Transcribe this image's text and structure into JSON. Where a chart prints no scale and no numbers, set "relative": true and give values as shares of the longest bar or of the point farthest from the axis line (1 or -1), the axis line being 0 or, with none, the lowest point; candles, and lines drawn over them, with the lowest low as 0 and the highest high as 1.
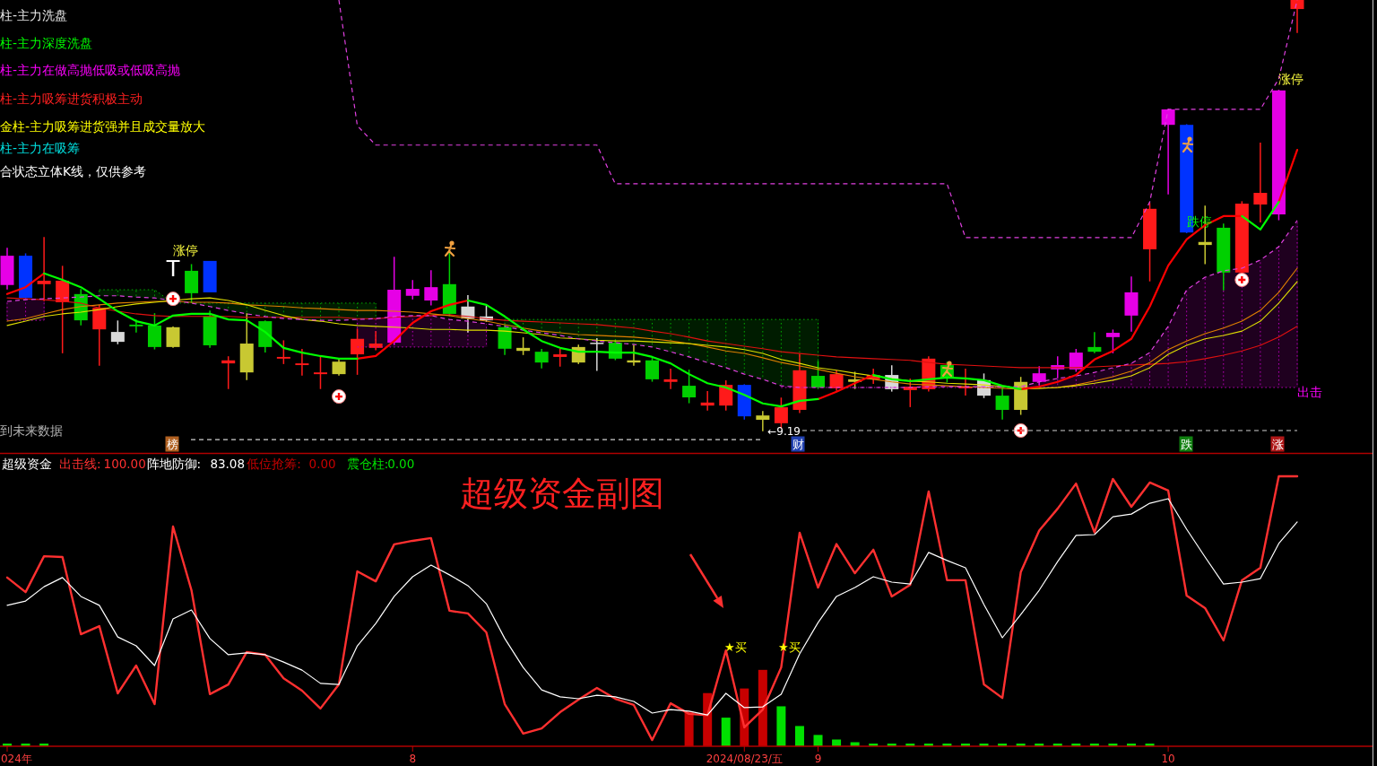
{
  "chart_data": [
    {
      "type": "candlestick",
      "relative": true,
      "categories": [
        null,
        null,
        null,
        null,
        null,
        null,
        null,
        null,
        null,
        null,
        null,
        null,
        null,
        null,
        null,
        null,
        null,
        null,
        null,
        null,
        null,
        null,
        null,
        null,
        null,
        null,
        null,
        null,
        null,
        null,
        null,
        null,
        null,
        null,
        null,
        null,
        null,
        null,
        null,
        null,
        null,
        null,
        null,
        null,
        null,
        null,
        null,
        null,
        null,
        null,
        null,
        null,
        null,
        null,
        null,
        null,
        null,
        null,
        null,
        null,
        null,
        null,
        null,
        null,
        null,
        null,
        null,
        null,
        null,
        null,
        null
      ],
      "ohlc": [
        [
          0.338,
          0.423,
          0.329,
          0.406
        ],
        [
          0.406,
          0.41,
          0.308,
          0.308
        ],
        [
          0.34,
          0.448,
          0.302,
          0.348
        ],
        [
          0.298,
          0.381,
          0.181,
          0.348
        ],
        [
          0.317,
          0.327,
          0.246,
          0.256
        ],
        [
          0.235,
          0.29,
          0.152,
          0.285
        ],
        [
          0.229,
          0.254,
          0.202,
          0.206
        ],
        [
          0.246,
          0.256,
          0.229,
          0.242
        ],
        [
          0.244,
          0.271,
          0.19,
          0.194
        ],
        [
          0.194,
          0.24,
          0.194,
          0.24
        ],
        [
          0.371,
          0.385,
          0.298,
          0.319
        ],
        [
          0.265,
          0.277,
          0.194,
          0.198
        ],
        [
          0.156,
          0.171,
          0.098,
          0.163
        ],
        [
          0.135,
          0.271,
          0.119,
          0.202
        ],
        [
          0.254,
          0.254,
          0.183,
          0.194
        ],
        [
          0.167,
          0.208,
          0.156,
          0.171
        ],
        [
          0.152,
          0.188,
          0.129,
          0.156
        ],
        [
          0.131,
          0.171,
          0.098,
          0.135
        ],
        [
          0.131,
          0.167,
          0.129,
          0.16
        ],
        [
          0.177,
          0.235,
          0.131,
          0.213
        ],
        [
          0.192,
          0.229,
          0.188,
          0.202
        ],
        [
          0.204,
          0.402,
          0.2,
          0.327
        ],
        [
          0.313,
          0.348,
          0.306,
          0.329
        ],
        [
          0.302,
          0.371,
          0.292,
          0.333
        ],
        [
          0.34,
          0.417,
          0.267,
          0.271
        ],
        [
          0.288,
          0.313,
          0.229,
          0.26
        ],
        [
          0.265,
          0.288,
          0.254,
          0.256
        ],
        [
          0.24,
          0.244,
          0.177,
          0.19
        ],
        [
          0.185,
          0.215,
          0.177,
          0.192
        ],
        [
          0.183,
          0.188,
          0.146,
          0.158
        ],
        [
          0.171,
          0.188,
          0.15,
          0.177
        ],
        [
          0.158,
          0.198,
          0.156,
          0.194
        ],
        [
          0.204,
          0.213,
          0.14,
          0.202
        ],
        [
          0.204,
          0.208,
          0.165,
          0.167
        ],
        [
          0.158,
          0.198,
          0.152,
          0.163
        ],
        [
          0.163,
          0.167,
          0.115,
          0.119
        ],
        [
          0.113,
          0.142,
          0.098,
          0.119
        ],
        [
          0.104,
          0.14,
          0.065,
          0.077
        ],
        [
          0.058,
          0.09,
          0.048,
          0.065
        ],
        [
          0.058,
          0.115,
          0.048,
          0.106
        ],
        [
          0.106,
          0.106,
          0.027,
          0.033
        ],
        [
          0.025,
          0.044,
          0,
          0.035
        ],
        [
          0.017,
          0.075,
          0.006,
          0.054
        ],
        [
          0.048,
          0.177,
          0.042,
          0.14
        ],
        [
          0.127,
          0.16,
          0.098,
          0.1
        ],
        [
          0.098,
          0.138,
          0.094,
          0.131
        ],
        [
          0.113,
          0.135,
          0.098,
          0.119
        ],
        [
          0.119,
          0.142,
          0.11,
          0.129
        ],
        [
          0.129,
          0.15,
          0.092,
          0.096
        ],
        [
          0.094,
          0.119,
          0.056,
          0.102
        ],
        [
          0.096,
          0.171,
          0.092,
          0.167
        ],
        [
          0.152,
          0.158,
          0.113,
          0.121
        ],
        [
          0.098,
          0.142,
          0.083,
          0.102
        ],
        [
          0.117,
          0.131,
          0.077,
          0.081
        ],
        [
          0.081,
          0.102,
          0.027,
          0.048
        ],
        [
          0.048,
          0.123,
          0.038,
          0.113
        ],
        [
          0.113,
          0.148,
          0.106,
          0.133
        ],
        [
          0.142,
          0.171,
          0.123,
          0.152
        ],
        [
          0.142,
          0.188,
          0.138,
          0.181
        ],
        [
          0.194,
          0.227,
          0.181,
          0.183
        ],
        [
          0.217,
          0.233,
          0.181,
          0.227
        ],
        [
          0.267,
          0.356,
          0.231,
          0.321
        ],
        [
          0.421,
          0.527,
          0.348,
          0.515
        ],
        [
          0.71,
          0.746,
          0.55,
          0.746
        ],
        [
          0.71,
          0.71,
          0.46,
          0.46
        ],
        [
          0.431,
          0.521,
          0.388,
          0.438
        ],
        [
          0.471,
          0.479,
          0.327,
          0.367
        ],
        [
          0.367,
          0.531,
          0.363,
          0.527
        ],
        [
          0.525,
          0.667,
          0.485,
          0.552
        ],
        [
          0.502,
          0.79,
          0.49,
          0.79
        ],
        [
          0.979,
          1,
          0.925,
          1
        ]
      ],
      "colors": [
        "#e600e6",
        "#0033ff",
        "#ff1a1a",
        "#ff1a1a",
        "#00d000",
        "#ff1a1a",
        "#d8d8d8",
        "#00d000",
        "#00d000",
        "#c8c832",
        "#00d000",
        "#00d000",
        "#ff1a1a",
        "#c8c832",
        "#00d000",
        "#ff1a1a",
        "#ff1a1a",
        "#ff1a1a",
        "#c8c832",
        "#ff1a1a",
        "#ff1a1a",
        "#e600e6",
        "#e600e6",
        "#e600e6",
        "#00d000",
        "#d8d8d8",
        "#d8d8d8",
        "#00d000",
        "#c8c832",
        "#00d000",
        "#ff1a1a",
        "#c8c832",
        "#d8d8d8",
        "#00d000",
        "#c8c832",
        "#00d000",
        "#ff1a1a",
        "#00d000",
        "#ff1a1a",
        "#ff1a1a",
        "#0033ff",
        "#c8c832",
        "#ff1a1a",
        "#ff1a1a",
        "#00d000",
        "#ff1a1a",
        "#c8c832",
        "#ff1a1a",
        "#d8d8d8",
        "#ff1a1a",
        "#ff1a1a",
        "#00d000",
        "#ff1a1a",
        "#d8d8d8",
        "#00d000",
        "#c8c832",
        "#e600e6",
        "#e600e6",
        "#e600e6",
        "#00d000",
        "#e600e6",
        "#e600e6",
        "#ff1a1a",
        "#e600e6",
        "#0033ff",
        "#c8c832",
        "#00d000",
        "#ff1a1a",
        "#ff1a1a",
        "#e600e6",
        "#ff1a1a"
      ],
      "series": [
        {
          "type": "line",
          "color": "#00b000",
          "line_style": "dotted",
          "values": [
            null,
            null,
            null,
            null,
            null,
            0.327,
            0.327,
            0.327,
            0.327,
            0.296,
            0.296,
            0.296,
            0.296,
            0.296,
            0.296,
            0.296,
            0.296,
            0.296,
            0.296,
            0.296,
            0.296,
            null,
            null,
            null,
            null,
            null,
            null,
            0.258,
            0.258,
            0.258,
            0.258,
            0.258,
            0.258,
            0.258,
            0.258,
            0.258,
            0.258,
            0.258,
            0.258,
            0.258,
            0.258,
            0.258,
            0.258,
            0.258,
            0.258,
            null,
            null,
            null,
            null,
            null,
            null,
            null,
            null,
            null,
            null,
            null,
            null,
            null,
            null,
            null,
            null,
            null,
            null,
            null,
            null,
            null,
            null,
            null,
            null,
            null,
            null
          ],
          "lower": [
            null,
            null,
            null,
            null,
            null,
            0.313,
            0.313,
            0.31,
            0.308,
            0.296,
            0.296,
            0.288,
            0.279,
            0.271,
            0.265,
            0.26,
            0.258,
            0.256,
            0.256,
            0.258,
            0.26,
            null,
            null,
            null,
            null,
            null,
            null,
            0.242,
            0.233,
            0.227,
            0.221,
            0.213,
            0.208,
            0.204,
            0.2,
            0.194,
            0.183,
            0.171,
            0.158,
            0.146,
            0.131,
            0.119,
            0.104,
            0.1,
            0.1,
            null,
            null,
            null,
            null,
            null,
            null,
            null,
            null,
            null,
            null,
            null,
            null,
            null,
            null,
            null,
            null,
            null,
            null,
            null,
            null,
            null,
            null,
            null,
            null,
            null,
            null
          ],
          "upper": [
            null,
            null,
            null,
            null,
            null,
            0.327,
            0.327,
            0.327,
            0.327,
            0.296,
            0.296,
            0.296,
            0.296,
            0.296,
            0.296,
            0.296,
            0.296,
            0.296,
            0.296,
            0.296,
            0.296,
            null,
            null,
            null,
            null,
            null,
            null,
            0.258,
            0.258,
            0.258,
            0.258,
            0.258,
            0.258,
            0.258,
            0.258,
            0.258,
            0.258,
            0.258,
            0.258,
            0.258,
            0.258,
            0.258,
            0.258,
            0.258,
            0.258,
            null,
            null,
            null,
            null,
            null,
            null,
            null,
            null,
            null,
            null,
            null,
            null,
            null,
            null,
            null,
            null,
            null,
            null,
            null,
            null,
            null,
            null,
            null,
            null,
            null,
            null
          ]
        },
        {
          "type": "line",
          "color": "#c000c0",
          "line_style": "dotted",
          "values": [
            0.256,
            0.256,
            0.256,
            null,
            null,
            null,
            null,
            null,
            null,
            null,
            null,
            null,
            null,
            null,
            null,
            null,
            null,
            null,
            null,
            0.194,
            0.194,
            0.194,
            0.194,
            0.194,
            0.194,
            0.194,
            0.194,
            null,
            null,
            null,
            null,
            null,
            null,
            null,
            null,
            null,
            null,
            null,
            null,
            null,
            null,
            null,
            0.1,
            0.1,
            0.1,
            0.1,
            0.1,
            0.1,
            0.1,
            0.1,
            0.1,
            0.1,
            0.1,
            0.1,
            0.1,
            0.1,
            0.1,
            0.1,
            0.1,
            0.1,
            0.1,
            0.1,
            0.1,
            0.1,
            0.1,
            0.1,
            0.1,
            0.1,
            0.1,
            0.1,
            0.1
          ],
          "lower": [
            0.256,
            0.256,
            0.256,
            null,
            null,
            null,
            null,
            null,
            null,
            null,
            null,
            null,
            null,
            null,
            null,
            null,
            null,
            null,
            null,
            0.194,
            0.194,
            0.194,
            0.194,
            0.194,
            0.194,
            0.194,
            0.194,
            null,
            null,
            null,
            null,
            null,
            null,
            null,
            null,
            null,
            null,
            null,
            null,
            null,
            null,
            null,
            0.1,
            0.1,
            0.1,
            0.1,
            0.1,
            0.1,
            0.1,
            0.1,
            0.1,
            0.1,
            0.1,
            0.1,
            0.1,
            0.1,
            0.1,
            0.1,
            0.1,
            0.1,
            0.1,
            0.1,
            0.1,
            0.1,
            0.1,
            0.1,
            0.1,
            0.1,
            0.1,
            0.1,
            0.1
          ],
          "upper": [
            0.3,
            0.304,
            0.306,
            null,
            null,
            null,
            null,
            null,
            null,
            null,
            null,
            null,
            null,
            null,
            null,
            null,
            null,
            null,
            null,
            0.258,
            0.26,
            0.265,
            0.267,
            0.267,
            0.258,
            0.254,
            0.248,
            null,
            null,
            null,
            null,
            null,
            null,
            null,
            null,
            null,
            null,
            null,
            null,
            null,
            null,
            null,
            0.104,
            0.1,
            0.1,
            0.1,
            0.1,
            0.1,
            0.1,
            0.1,
            0.102,
            0.102,
            0.102,
            0.102,
            0.102,
            0.102,
            0.113,
            0.121,
            0.127,
            0.135,
            0.146,
            0.156,
            0.181,
            0.242,
            0.327,
            0.356,
            0.371,
            0.377,
            0.396,
            0.427,
            0.488
          ]
        },
        {
          "type": "line",
          "color": "#e01010",
          "values": [
            0.308,
            0.306,
            0.304,
            0.3,
            0.296,
            0.285,
            0.277,
            0.271,
            0.267,
            0.265,
            0.265,
            0.265,
            0.265,
            0.263,
            0.263,
            0.263,
            0.263,
            0.263,
            0.263,
            0.26,
            0.26,
            0.263,
            0.265,
            0.267,
            0.269,
            0.265,
            0.26,
            0.256,
            0.254,
            0.252,
            0.25,
            0.248,
            0.246,
            0.242,
            0.238,
            0.231,
            0.225,
            0.217,
            0.208,
            0.202,
            0.196,
            0.19,
            0.183,
            0.179,
            0.175,
            0.171,
            0.169,
            0.167,
            0.165,
            0.163,
            0.158,
            0.154,
            0.152,
            0.15,
            0.148,
            0.146,
            0.146,
            0.146,
            0.146,
            0.148,
            0.15,
            0.152,
            0.154,
            0.156,
            0.16,
            0.167,
            0.175,
            0.185,
            0.198,
            0.217,
            0.242
          ]
        },
        {
          "type": "line",
          "color": "#e08000",
          "values": [
            0.254,
            0.26,
            0.271,
            0.281,
            0.288,
            0.292,
            0.296,
            0.298,
            0.3,
            0.3,
            0.298,
            0.298,
            0.296,
            0.292,
            0.29,
            0.288,
            0.285,
            0.283,
            0.281,
            0.279,
            0.279,
            0.277,
            0.275,
            0.271,
            0.267,
            0.26,
            0.254,
            0.246,
            0.238,
            0.231,
            0.227,
            0.223,
            0.221,
            0.219,
            0.217,
            0.213,
            0.208,
            0.202,
            0.194,
            0.185,
            0.179,
            0.169,
            0.158,
            0.15,
            0.142,
            0.133,
            0.125,
            0.119,
            0.113,
            0.108,
            0.106,
            0.104,
            0.102,
            0.1,
            0.098,
            0.096,
            0.098,
            0.1,
            0.106,
            0.115,
            0.125,
            0.138,
            0.158,
            0.188,
            0.208,
            0.225,
            0.238,
            0.254,
            0.279,
            0.321,
            0.377
          ]
        },
        {
          "type": "line",
          "color": "#e0e000",
          "values": [
            0.244,
            0.254,
            0.265,
            0.271,
            0.275,
            0.281,
            0.288,
            0.294,
            0.298,
            0.302,
            0.306,
            0.308,
            0.302,
            0.292,
            0.279,
            0.267,
            0.258,
            0.254,
            0.248,
            0.244,
            0.242,
            0.24,
            0.238,
            0.235,
            0.235,
            0.233,
            0.233,
            0.231,
            0.227,
            0.223,
            0.215,
            0.213,
            0.21,
            0.208,
            0.208,
            0.206,
            0.204,
            0.202,
            0.198,
            0.194,
            0.188,
            0.179,
            0.165,
            0.156,
            0.146,
            0.14,
            0.133,
            0.127,
            0.121,
            0.115,
            0.113,
            0.11,
            0.108,
            0.106,
            0.102,
            0.098,
            0.098,
            0.1,
            0.104,
            0.11,
            0.117,
            0.127,
            0.146,
            0.177,
            0.198,
            0.213,
            0.221,
            0.231,
            0.254,
            0.296,
            0.346
          ]
        },
        {
          "type": "line",
          "color": "#e040e0",
          "line_style": "dashed",
          "values": [
            0.3,
            0.304,
            0.306,
            0.308,
            0.31,
            0.313,
            0.313,
            0.31,
            0.308,
            0.302,
            0.296,
            0.288,
            0.279,
            0.271,
            0.265,
            0.26,
            0.258,
            0.256,
            0.256,
            0.258,
            0.26,
            0.265,
            0.267,
            0.267,
            0.258,
            0.254,
            0.248,
            0.242,
            0.233,
            0.227,
            0.221,
            0.213,
            0.208,
            0.204,
            0.2,
            0.194,
            0.183,
            0.171,
            0.158,
            0.146,
            0.131,
            0.119,
            0.104,
            0.1,
            0.1,
            0.1,
            0.1,
            0.1,
            0.1,
            0.1,
            0.102,
            0.102,
            0.102,
            0.102,
            0.102,
            0.102,
            0.113,
            0.121,
            0.127,
            0.135,
            0.146,
            0.156,
            0.181,
            0.242,
            0.327,
            0.356,
            0.371,
            0.377,
            0.396,
            0.427,
            0.488
          ]
        },
        {
          "type": "line",
          "color": "#e040e0",
          "line_style": "dashed",
          "values": [
            null,
            null,
            null,
            null,
            null,
            null,
            null,
            null,
            null,
            null,
            null,
            null,
            null,
            null,
            null,
            null,
            null,
            null,
            1,
            0.708,
            0.663,
            0.663,
            0.663,
            0.663,
            0.663,
            0.663,
            0.663,
            0.663,
            0.663,
            0.663,
            0.663,
            0.663,
            0.663,
            0.573,
            0.573,
            0.573,
            0.573,
            0.573,
            0.573,
            0.573,
            0.573,
            0.573,
            0.573,
            0.573,
            0.573,
            0.573,
            0.573,
            0.573,
            0.573,
            0.573,
            0.573,
            0.573,
            0.448,
            0.448,
            0.448,
            0.448,
            0.448,
            0.448,
            0.448,
            0.448,
            0.448,
            0.448,
            0.531,
            0.746,
            0.746,
            0.746,
            0.746,
            0.746,
            0.746,
            0.817,
            1
          ]
        },
        {
          "type": "line",
          "color": "#ff0000",
          "values": [
            0.317,
            0.333,
            0.365,
            null,
            null,
            null,
            null,
            null,
            null,
            null,
            null,
            null,
            null,
            null,
            null,
            null,
            null,
            null,
            null,
            0.167,
            0.173,
            0.208,
            0.25,
            0.277,
            0.292,
            0.302,
            null,
            null,
            null,
            null,
            null,
            null,
            null,
            null,
            null,
            null,
            null,
            null,
            null,
            null,
            null,
            null,
            null,
            null,
            0.073,
            0.09,
            0.11,
            0.129,
            null,
            null,
            null,
            null,
            null,
            null,
            null,
            0.096,
            0.102,
            0.113,
            0.129,
            0.165,
            0.185,
            0.213,
            0.288,
            0.383,
            0.444,
            0.477,
            0.498,
            0.498,
            null,
            0.531,
            0.652
          ]
        },
        {
          "type": "line",
          "color": "#00ff00",
          "values": [
            null,
            null,
            0.365,
            0.35,
            0.333,
            0.306,
            0.277,
            0.254,
            0.244,
            0.267,
            0.271,
            0.271,
            0.258,
            0.256,
            0.229,
            0.192,
            0.181,
            0.173,
            0.167,
            0.167,
            null,
            null,
            null,
            null,
            null,
            0.302,
            0.292,
            0.265,
            0.235,
            0.208,
            0.192,
            0.183,
            0.183,
            0.181,
            0.181,
            0.171,
            0.156,
            0.131,
            0.11,
            0.1,
            0.083,
            0.063,
            0.056,
            0.069,
            0.073,
            null,
            null,
            0.129,
            0.119,
            0.115,
            0.119,
            0.123,
            0.121,
            0.117,
            0.104,
            0.096,
            null,
            null,
            null,
            null,
            null,
            null,
            null,
            null,
            null,
            null,
            null,
            0.498,
            0.467,
            0.531,
            null
          ]
        },
        {
          "type": "bar",
          "color": "#0033ff",
          "base": [
            null,
            null,
            null,
            null,
            null,
            null,
            null,
            null,
            null,
            null,
            null,
            0.321,
            null,
            null,
            null,
            null,
            null,
            null,
            null,
            null,
            null,
            null,
            null,
            null,
            null,
            null,
            null,
            null,
            null,
            null,
            null,
            null,
            null,
            null,
            null,
            null,
            null,
            null,
            null,
            null,
            null,
            null,
            null,
            null,
            null,
            null,
            null,
            null,
            null,
            null,
            null,
            null,
            null,
            null,
            null,
            null,
            null,
            null,
            null,
            null,
            null,
            null,
            null,
            null,
            null,
            null,
            null,
            null,
            null,
            null,
            null
          ],
          "values": [
            null,
            null,
            null,
            null,
            null,
            null,
            null,
            null,
            null,
            null,
            null,
            0.073,
            null,
            null,
            null,
            null,
            null,
            null,
            null,
            null,
            null,
            null,
            null,
            null,
            null,
            null,
            null,
            null,
            null,
            null,
            null,
            null,
            null,
            null,
            null,
            null,
            null,
            null,
            null,
            null,
            null,
            null,
            null,
            null,
            null,
            null,
            null,
            null,
            null,
            null,
            null,
            null,
            null,
            null,
            null,
            null,
            null,
            null,
            null,
            null,
            null,
            null,
            null,
            null,
            null,
            null,
            null,
            null,
            null,
            null,
            null
          ]
        },
        {
          "type": "scatter",
          "marker": "circle",
          "color": "#ffffff",
          "values": [
            null,
            null,
            null,
            null,
            null,
            null,
            null,
            null,
            null,
            0.306,
            null,
            null,
            null,
            null,
            null,
            null,
            null,
            null,
            0.079,
            null,
            null,
            null,
            null,
            null,
            null,
            null,
            null,
            null,
            null,
            null,
            null,
            null,
            null,
            null,
            null,
            null,
            null,
            null,
            null,
            null,
            null,
            null,
            null,
            null,
            null,
            null,
            null,
            null,
            null,
            null,
            null,
            null,
            null,
            null,
            null,
            0,
            null,
            null,
            null,
            null,
            null,
            null,
            null,
            null,
            null,
            null,
            null,
            0.35,
            null,
            null,
            null
          ]
        }
      ],
      "ref_lines": [
        {
          "axis": "y",
          "value": -0.021,
          "color": "#d0d0d0",
          "line_style": "dashed"
        }
      ],
      "annotations": [
        "柱-主力洗盘",
        "柱-主力深度洗盘",
        "柱-主力在做高抛低吸或低吸高抛",
        "柱-主力吸筹进货积极主动",
        "金柱-主力吸筹进货强并且成交量放大",
        "柱-主力在吸筹",
        "合状态立体K线，仅供参考",
        "涨停",
        "T",
        "涨停",
        "跌停",
        "出击",
        "到未来数据",
        "榜",
        "财",
        "跌",
        "涨",
        "←9.19"
      ]
    },
    {
      "type": "line",
      "relative": true,
      "title": "超级资金",
      "legend": "top left",
      "categories": [
        "024年",
        null,
        null,
        null,
        null,
        null,
        null,
        null,
        null,
        null,
        null,
        null,
        null,
        null,
        null,
        null,
        null,
        null,
        null,
        null,
        null,
        null,
        "8",
        null,
        null,
        null,
        null,
        null,
        null,
        null,
        null,
        null,
        null,
        null,
        null,
        null,
        null,
        null,
        null,
        null,
        "2024/08/23/五",
        null,
        null,
        null,
        "9",
        null,
        null,
        null,
        null,
        null,
        null,
        null,
        null,
        null,
        null,
        null,
        null,
        null,
        null,
        null,
        null,
        null,
        null,
        "10",
        null,
        null,
        null,
        null,
        null,
        null,
        null
      ],
      "series": [
        {
          "name": "出击线:",
          "color": "#ff3030",
          "values": [
            0.625,
            0.571,
            0.704,
            0.701,
            0.415,
            0.445,
            0.196,
            0.299,
            0.156,
            0.814,
            0.578,
            0.193,
            0.229,
            0.349,
            0.339,
            0.252,
            0.206,
            0.14,
            0.229,
            0.648,
            0.611,
            0.748,
            0.761,
            0.771,
            0.502,
            0.492,
            0.422,
            0.156,
            0.047,
            0.066,
            0.126,
            0.173,
            0.216,
            0.176,
            0.153,
            0.023,
            0.159,
            0.12,
            0.115,
            0.355,
            0.07,
            0.136,
            0.292,
            0.791,
            0.588,
            0.749,
            0.641,
            0.728,
            0.555,
            0.598,
            0.944,
            0.615,
            0.615,
            0.229,
            0.179,
            0.645,
            0.799,
            0.88,
            0.973,
            0.792,
            0.99,
            0.887,
            0.977,
            0.947,
            0.558,
            0.512,
            0.392,
            0.615,
            0.661,
            1,
            1
          ]
        },
        {
          "name": "阵地防御:",
          "color": "#ffffff",
          "values": [
            0.522,
            0.538,
            0.591,
            0.625,
            0.555,
            0.522,
            0.405,
            0.372,
            0.299,
            0.472,
            0.505,
            0.399,
            0.339,
            0.346,
            0.339,
            0.312,
            0.282,
            0.233,
            0.229,
            0.372,
            0.455,
            0.555,
            0.628,
            0.671,
            0.635,
            0.595,
            0.528,
            0.399,
            0.292,
            0.209,
            0.183,
            0.176,
            0.189,
            0.183,
            0.166,
            0.123,
            0.136,
            0.13,
            0.116,
            0.196,
            0.143,
            0.146,
            0.193,
            0.342,
            0.458,
            0.555,
            0.588,
            0.628,
            0.608,
            0.601,
            0.718,
            0.688,
            0.661,
            0.525,
            0.402,
            0.488,
            0.578,
            0.684,
            0.781,
            0.784,
            0.85,
            0.86,
            0.9,
            0.917,
            0.804,
            0.701,
            0.601,
            0.608,
            0.621,
            0.751,
            0.8308
          ]
        },
        {
          "name": "低位抢筹:",
          "type": "bar",
          "color": "#c80000",
          "values": [
            null,
            null,
            null,
            null,
            null,
            null,
            null,
            null,
            null,
            null,
            null,
            null,
            null,
            null,
            null,
            null,
            null,
            null,
            null,
            null,
            null,
            null,
            null,
            null,
            null,
            null,
            null,
            null,
            null,
            null,
            null,
            null,
            null,
            null,
            null,
            null,
            null,
            0.128,
            0.197,
            null,
            0.214,
            0.283,
            null,
            null,
            null,
            null,
            null,
            null,
            null,
            null,
            null,
            null,
            null,
            null,
            null,
            null,
            null,
            null,
            null,
            null,
            null,
            null,
            null,
            null,
            null,
            null,
            null,
            null,
            null,
            null,
            null
          ]
        },
        {
          "name": "震仓柱:",
          "type": "bar",
          "color": "#00e000",
          "values": [
            0.01,
            0.01,
            0.01,
            null,
            null,
            null,
            null,
            null,
            null,
            null,
            null,
            null,
            null,
            null,
            null,
            null,
            null,
            null,
            null,
            null,
            null,
            null,
            null,
            null,
            null,
            null,
            null,
            null,
            null,
            null,
            null,
            null,
            null,
            null,
            null,
            null,
            null,
            null,
            null,
            0.106,
            null,
            null,
            0.148,
            0.075,
            0.042,
            0.025,
            0.015,
            0.01,
            0.01,
            0.01,
            0.01,
            0.01,
            0.01,
            0.01,
            0.01,
            0.01,
            0.01,
            0.01,
            0.01,
            0.01,
            0.01,
            0.01,
            0.01,
            null,
            null,
            null,
            null,
            null,
            null,
            null,
            null
          ]
        }
      ],
      "annotations": [
        "100.00",
        "83.08",
        "0.00",
        "0.00",
        "超级资金副图",
        "★买",
        "★买"
      ]
    }
  ]
}
